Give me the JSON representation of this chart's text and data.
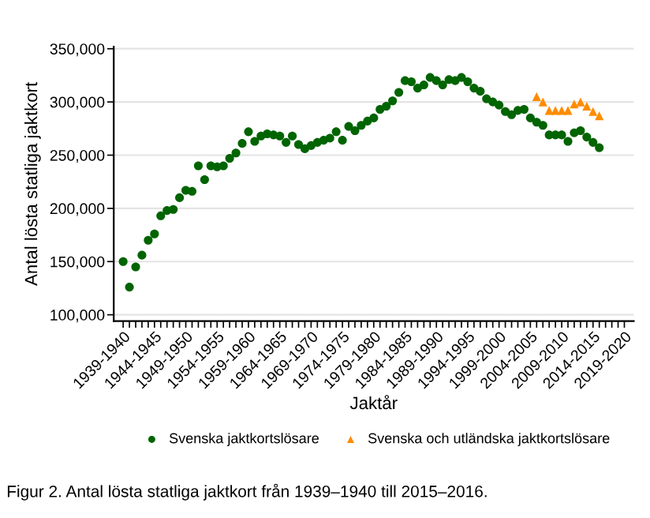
{
  "chart_data": {
    "type": "scatter",
    "xlabel": "Jaktår",
    "ylabel": "Antal lösta statliga jaktkort",
    "annotations": [
      "Figur 2. Antal lösta statliga jaktkort från 1939–1940 till 2015–2016."
    ],
    "categories": [
      "1939-1940",
      null,
      null,
      null,
      null,
      "1944-1945",
      null,
      null,
      null,
      null,
      "1949-1950",
      null,
      null,
      null,
      null,
      "1954-1955",
      null,
      null,
      null,
      null,
      "1959-1960",
      null,
      null,
      null,
      null,
      "1964-1965",
      null,
      null,
      null,
      null,
      "1969-1970",
      null,
      null,
      null,
      null,
      "1974-1975",
      null,
      null,
      null,
      null,
      "1979-1980",
      null,
      null,
      null,
      null,
      "1984-1985",
      null,
      null,
      null,
      null,
      "1989-1990",
      null,
      null,
      null,
      null,
      "1994-1995",
      null,
      null,
      null,
      null,
      "1999-2000",
      null,
      null,
      null,
      null,
      "2004-2005",
      null,
      null,
      null,
      null,
      "2009-2010",
      null,
      null,
      null,
      null,
      "2014-2015",
      null,
      null,
      null,
      null,
      "2019-2020"
    ],
    "series": [
      {
        "name": "Svenska jaktkortslösare",
        "color": "#006400",
        "marker": "circle",
        "values": [
          150000,
          126000,
          145000,
          156000,
          170000,
          176000,
          193000,
          198000,
          199000,
          210000,
          217000,
          216000,
          240000,
          227000,
          240000,
          239000,
          240000,
          247000,
          252000,
          261000,
          272000,
          263000,
          268000,
          270000,
          269000,
          268000,
          262000,
          268000,
          260000,
          256000,
          259000,
          262000,
          264000,
          266000,
          272000,
          264000,
          277000,
          273000,
          278000,
          282000,
          285000,
          293000,
          296000,
          301000,
          309000,
          320000,
          319000,
          313000,
          316000,
          323000,
          320000,
          316000,
          321000,
          320000,
          323000,
          319000,
          313000,
          310000,
          303000,
          300000,
          297000,
          291000,
          288000,
          292000,
          293000,
          285000,
          281000,
          278000,
          269000,
          269000,
          269000,
          263000,
          271000,
          273000,
          267000,
          262000,
          257000,
          null,
          null,
          null,
          null
        ]
      },
      {
        "name": "Svenska och utländska jaktkortslösare",
        "color": "#ff8c00",
        "marker": "triangle",
        "values": [
          null,
          null,
          null,
          null,
          null,
          null,
          null,
          null,
          null,
          null,
          null,
          null,
          null,
          null,
          null,
          null,
          null,
          null,
          null,
          null,
          null,
          null,
          null,
          null,
          null,
          null,
          null,
          null,
          null,
          null,
          null,
          null,
          null,
          null,
          null,
          null,
          null,
          null,
          null,
          null,
          null,
          null,
          null,
          null,
          null,
          null,
          null,
          null,
          null,
          null,
          null,
          null,
          null,
          null,
          null,
          null,
          null,
          null,
          null,
          null,
          null,
          null,
          null,
          null,
          null,
          null,
          305000,
          300000,
          292000,
          292000,
          292000,
          292000,
          298000,
          300000,
          296000,
          291000,
          287000,
          null,
          null,
          null,
          null
        ]
      }
    ],
    "ylim": [
      94000,
      352000
    ],
    "yticks": [
      {
        "value": 100000,
        "label": "100,000"
      },
      {
        "value": 150000,
        "label": "150,000"
      },
      {
        "value": 200000,
        "label": "200,000"
      },
      {
        "value": 250000,
        "label": "250,000"
      },
      {
        "value": 300000,
        "label": "300,000"
      },
      {
        "value": 350000,
        "label": "350,000"
      }
    ],
    "grid": "y",
    "legend": "bottom"
  }
}
